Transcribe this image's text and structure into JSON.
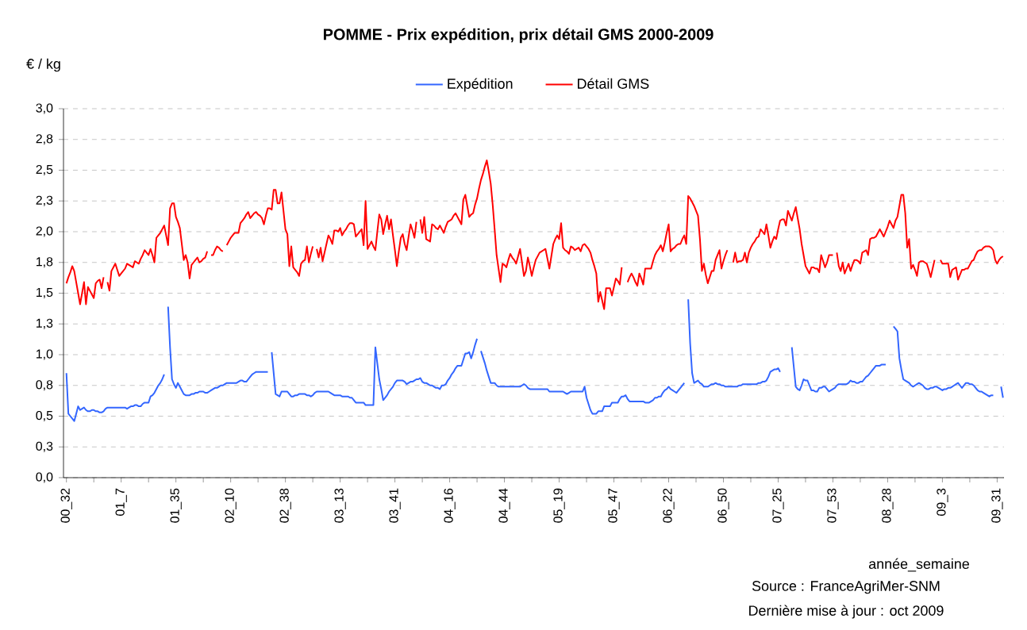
{
  "chart_data": {
    "type": "line",
    "title": "POMME - Prix expédition, prix détail GMS  2000-2009",
    "ylabel": "€ / kg",
    "xlabel": "année_semaine",
    "annotations": [
      "Source : FranceAgriMer-SNM",
      "Dernière mise à jour : oct 2009"
    ],
    "legend": "top",
    "grid": "y",
    "line_style": "solid",
    "ylim": [
      0,
      3
    ],
    "yticks": [
      {
        "value": 0,
        "label": "0,0"
      },
      {
        "value": 0.25,
        "label": "0,3"
      },
      {
        "value": 0.5,
        "label": "0,5"
      },
      {
        "value": 0.75,
        "label": "0,8"
      },
      {
        "value": 1,
        "label": "1,0"
      },
      {
        "value": 1.25,
        "label": "1,3"
      },
      {
        "value": 1.5,
        "label": "1,5"
      },
      {
        "value": 1.75,
        "label": "1,8"
      },
      {
        "value": 2,
        "label": "2,0"
      },
      {
        "value": 2.25,
        "label": "2,3"
      },
      {
        "value": 2.5,
        "label": "2,5"
      },
      {
        "value": 2.75,
        "label": "2,8"
      },
      {
        "value": 3,
        "label": "3,0"
      }
    ],
    "categories": [
      "00_32",
      null,
      null,
      null,
      null,
      null,
      null,
      null,
      null,
      null,
      null,
      null,
      null,
      null,
      null,
      null,
      null,
      null,
      null,
      null,
      null,
      null,
      null,
      null,
      null,
      null,
      null,
      null,
      "01_7",
      null,
      null,
      null,
      null,
      null,
      null,
      null,
      null,
      null,
      null,
      null,
      null,
      null,
      null,
      null,
      null,
      null,
      null,
      null,
      null,
      null,
      null,
      null,
      null,
      null,
      null,
      null,
      "01_35",
      null,
      null,
      null,
      null,
      null,
      null,
      null,
      null,
      null,
      null,
      null,
      null,
      null,
      null,
      null,
      null,
      null,
      null,
      null,
      null,
      null,
      null,
      null,
      null,
      null,
      null,
      null,
      "02_10",
      null,
      null,
      null,
      null,
      null,
      null,
      null,
      null,
      null,
      null,
      null,
      null,
      null,
      null,
      null,
      null,
      null,
      null,
      null,
      null,
      null,
      null,
      null,
      null,
      null,
      null,
      null,
      "02_38",
      null,
      null,
      null,
      null,
      null,
      null,
      null,
      null,
      null,
      null,
      null,
      null,
      null,
      null,
      null,
      null,
      null,
      null,
      null,
      null,
      null,
      null,
      null,
      null,
      null,
      null,
      null,
      "03_13",
      null,
      null,
      null,
      null,
      null,
      null,
      null,
      null,
      null,
      null,
      null,
      null,
      null,
      null,
      null,
      null,
      null,
      null,
      null,
      null,
      null,
      null,
      null,
      null,
      null,
      null,
      null,
      "03_41",
      null,
      null,
      null,
      null,
      null,
      null,
      null,
      null,
      null,
      null,
      null,
      null,
      null,
      null,
      null,
      null,
      null,
      null,
      null,
      null,
      null,
      null,
      null,
      null,
      null,
      null,
      null,
      "04_16",
      null,
      null,
      null,
      null,
      null,
      null,
      null,
      null,
      null,
      null,
      null,
      null,
      null,
      null,
      null,
      null,
      null,
      null,
      null,
      null,
      null,
      null,
      null,
      null,
      null,
      null,
      null,
      "04_44",
      null,
      null,
      null,
      null,
      null,
      null,
      null,
      null,
      null,
      null,
      null,
      null,
      null,
      null,
      null,
      null,
      null,
      null,
      null,
      null,
      null,
      null,
      null,
      null,
      null,
      null,
      null,
      "05_19",
      null,
      null,
      null,
      null,
      null,
      null,
      null,
      null,
      null,
      null,
      null,
      null,
      null,
      null,
      null,
      null,
      null,
      null,
      null,
      null,
      null,
      null,
      null,
      null,
      null,
      null,
      null,
      "05_47",
      null,
      null,
      null,
      null,
      null,
      null,
      null,
      null,
      null,
      null,
      null,
      null,
      null,
      null,
      null,
      null,
      null,
      null,
      null,
      null,
      null,
      null,
      null,
      null,
      null,
      null,
      null,
      "06_22",
      null,
      null,
      null,
      null,
      null,
      null,
      null,
      null,
      null,
      null,
      null,
      null,
      null,
      null,
      null,
      null,
      null,
      null,
      null,
      null,
      null,
      null,
      null,
      null,
      null,
      null,
      null,
      "06_50",
      null,
      null,
      null,
      null,
      null,
      null,
      null,
      null,
      null,
      null,
      null,
      null,
      null,
      null,
      null,
      null,
      null,
      null,
      null,
      null,
      null,
      null,
      null,
      null,
      null,
      null,
      null,
      "07_25",
      null,
      null,
      null,
      null,
      null,
      null,
      null,
      null,
      null,
      null,
      null,
      null,
      null,
      null,
      null,
      null,
      null,
      null,
      null,
      null,
      null,
      null,
      null,
      null,
      null,
      null,
      null,
      "07_53",
      null,
      null,
      null,
      null,
      null,
      null,
      null,
      null,
      null,
      null,
      null,
      null,
      null,
      null,
      null,
      null,
      null,
      null,
      null,
      null,
      null,
      null,
      null,
      null,
      null,
      null,
      null,
      "08_28",
      null,
      null,
      null,
      null,
      null,
      null,
      null,
      null,
      null,
      null,
      null,
      null,
      null,
      null,
      null,
      null,
      null,
      null,
      null,
      null,
      null,
      null,
      null,
      null,
      null,
      null,
      null,
      "09_3",
      null,
      null,
      null,
      null,
      null,
      null,
      null,
      null,
      null,
      null,
      null,
      null,
      null,
      null,
      null,
      null,
      null,
      null,
      null,
      null,
      null,
      null,
      null,
      null,
      null,
      null,
      null,
      "09_31",
      null,
      null,
      null
    ],
    "series": [
      {
        "name": "Expédition",
        "color": "#3366ff",
        "values": [
          0.85,
          0.52,
          0.5,
          0.48,
          0.46,
          0.52,
          0.58,
          0.55,
          0.56,
          0.57,
          0.55,
          0.54,
          0.54,
          0.55,
          0.55,
          0.54,
          0.54,
          0.53,
          0.53,
          0.54,
          0.56,
          0.57,
          0.57,
          0.57,
          0.57,
          0.57,
          0.57,
          0.57,
          0.57,
          0.57,
          0.57,
          0.56,
          0.57,
          0.58,
          0.58,
          0.59,
          0.59,
          0.58,
          0.58,
          0.6,
          0.61,
          0.61,
          0.61,
          0.66,
          0.67,
          0.69,
          0.72,
          0.75,
          0.77,
          0.8,
          0.84,
          null,
          1.39,
          1.06,
          0.8,
          0.76,
          0.73,
          0.77,
          0.74,
          0.71,
          0.68,
          0.67,
          0.67,
          0.67,
          0.68,
          0.68,
          0.69,
          0.69,
          0.7,
          0.7,
          0.7,
          0.69,
          0.69,
          0.7,
          0.71,
          0.72,
          0.73,
          0.73,
          0.74,
          0.75,
          0.75,
          0.76,
          0.77,
          0.77,
          0.77,
          0.77,
          0.77,
          0.77,
          0.78,
          0.79,
          0.79,
          0.78,
          0.78,
          0.8,
          0.82,
          0.84,
          0.85,
          0.86,
          0.86,
          0.86,
          0.86,
          0.86,
          0.86,
          0.86,
          null,
          1.02,
          0.85,
          0.68,
          0.67,
          0.66,
          0.7,
          0.7,
          0.7,
          0.7,
          0.68,
          0.66,
          0.66,
          0.67,
          0.67,
          0.68,
          0.68,
          0.68,
          0.68,
          0.67,
          0.67,
          0.66,
          0.67,
          0.69,
          0.7,
          0.7,
          0.7,
          0.7,
          0.7,
          0.7,
          0.7,
          0.69,
          0.68,
          0.67,
          0.67,
          0.67,
          0.67,
          0.66,
          0.66,
          0.66,
          0.66,
          0.65,
          0.65,
          0.63,
          0.61,
          0.61,
          0.61,
          0.61,
          0.61,
          0.59,
          0.59,
          0.59,
          0.59,
          0.59,
          1.06,
          0.93,
          0.8,
          0.72,
          0.63,
          0.65,
          0.67,
          0.7,
          0.72,
          0.74,
          0.77,
          0.79,
          0.79,
          0.79,
          0.79,
          0.78,
          0.76,
          0.77,
          0.78,
          0.78,
          0.79,
          0.8,
          0.8,
          0.81,
          0.78,
          0.77,
          0.77,
          0.76,
          0.75,
          0.75,
          0.74,
          0.73,
          0.73,
          0.72,
          0.75,
          0.75,
          0.76,
          0.79,
          0.81,
          0.84,
          0.86,
          0.89,
          0.91,
          0.91,
          0.91,
          0.96,
          1.01,
          1.01,
          1.02,
          0.97,
          1.02,
          1.08,
          1.13,
          null,
          1.03,
          0.98,
          0.93,
          0.87,
          0.82,
          0.77,
          0.77,
          0.77,
          0.75,
          0.74,
          0.74,
          0.74,
          0.74,
          0.74,
          0.74,
          0.74,
          0.74,
          0.74,
          0.74,
          0.74,
          0.74,
          0.75,
          0.76,
          0.75,
          0.73,
          0.72,
          0.72,
          0.72,
          0.72,
          0.72,
          0.72,
          0.72,
          0.72,
          0.72,
          0.72,
          0.7,
          0.7,
          0.7,
          0.7,
          0.7,
          0.7,
          0.7,
          0.7,
          0.69,
          0.68,
          0.69,
          0.7,
          0.7,
          0.7,
          0.7,
          0.7,
          0.7,
          0.7,
          0.74,
          0.65,
          0.6,
          0.55,
          0.52,
          0.52,
          0.52,
          0.54,
          0.54,
          0.54,
          0.58,
          0.58,
          0.58,
          0.58,
          0.61,
          0.61,
          0.61,
          0.61,
          0.64,
          0.66,
          0.66,
          0.67,
          0.64,
          0.62,
          0.62,
          0.62,
          0.62,
          0.62,
          0.62,
          0.62,
          0.62,
          0.61,
          0.61,
          0.61,
          0.62,
          0.63,
          0.65,
          0.65,
          0.66,
          0.66,
          0.69,
          0.71,
          0.72,
          0.74,
          0.72,
          0.71,
          0.7,
          0.69,
          0.71,
          0.73,
          0.75,
          0.77,
          null,
          1.45,
          1.09,
          0.85,
          0.77,
          0.78,
          0.79,
          0.77,
          0.76,
          0.74,
          0.74,
          0.74,
          0.75,
          0.76,
          0.76,
          0.77,
          0.76,
          0.76,
          0.75,
          0.75,
          0.74,
          0.74,
          0.74,
          0.74,
          0.74,
          0.74,
          0.74,
          0.75,
          0.75,
          0.76,
          0.76,
          0.76,
          0.76,
          0.76,
          0.76,
          0.76,
          0.76,
          0.77,
          0.77,
          0.78,
          0.78,
          0.79,
          0.82,
          0.86,
          0.87,
          0.88,
          0.88,
          0.89,
          0.86,
          null,
          null,
          null,
          null,
          null,
          1.06,
          0.9,
          0.74,
          0.72,
          0.71,
          0.75,
          0.8,
          0.79,
          0.79,
          0.75,
          0.71,
          0.71,
          0.7,
          0.7,
          0.73,
          0.73,
          0.74,
          0.74,
          0.72,
          0.7,
          0.71,
          0.72,
          0.73,
          0.75,
          0.76,
          0.76,
          0.76,
          0.76,
          0.76,
          0.77,
          0.79,
          0.78,
          0.78,
          0.77,
          0.77,
          0.78,
          0.78,
          0.8,
          0.82,
          0.83,
          0.85,
          0.87,
          0.89,
          0.91,
          0.91,
          0.91,
          0.92,
          0.92,
          0.92,
          null,
          null,
          null,
          1.23,
          1.21,
          1.19,
          0.97,
          0.88,
          0.8,
          0.79,
          0.78,
          0.77,
          0.75,
          0.74,
          0.75,
          0.76,
          0.77,
          0.76,
          0.75,
          0.73,
          0.72,
          0.72,
          0.73,
          0.73,
          0.74,
          0.74,
          0.73,
          0.72,
          0.71,
          0.72,
          0.72,
          0.73,
          0.73,
          0.74,
          0.75,
          0.76,
          0.77,
          0.75,
          0.73,
          0.75,
          0.77,
          0.77,
          0.76,
          0.76,
          0.75,
          0.73,
          0.71,
          0.7,
          0.7,
          0.69,
          0.68,
          0.67,
          0.66,
          0.67,
          0.67,
          null,
          null,
          null,
          0.74,
          0.65
        ]
      },
      {
        "name": "Détail GMS",
        "color": "#ff0000",
        "values": [
          1.58,
          1.63,
          1.67,
          1.72,
          1.68,
          1.59,
          1.5,
          1.41,
          1.5,
          1.59,
          1.41,
          1.55,
          1.52,
          1.49,
          1.46,
          1.58,
          1.6,
          1.61,
          1.54,
          1.63,
          null,
          1.59,
          1.52,
          1.68,
          1.71,
          1.74,
          1.69,
          1.64,
          1.66,
          1.68,
          1.7,
          1.74,
          1.73,
          1.72,
          1.71,
          1.76,
          1.75,
          1.74,
          1.78,
          1.81,
          1.85,
          1.83,
          1.81,
          1.86,
          1.81,
          1.75,
          1.95,
          1.97,
          1.99,
          2.02,
          2.05,
          1.97,
          1.89,
          2.19,
          2.23,
          2.23,
          2.12,
          2.08,
          2.03,
          1.9,
          1.77,
          1.81,
          1.75,
          1.62,
          1.73,
          1.75,
          1.77,
          1.79,
          1.75,
          1.76,
          1.78,
          1.79,
          1.84,
          null,
          1.81,
          1.81,
          1.85,
          1.88,
          1.87,
          1.85,
          1.84,
          null,
          1.89,
          1.92,
          1.95,
          1.97,
          1.99,
          1.99,
          1.99,
          2.07,
          2.09,
          2.11,
          2.14,
          2.16,
          2.11,
          2.13,
          2.15,
          2.16,
          2.14,
          2.13,
          2.11,
          2.06,
          2.13,
          2.19,
          2.19,
          2.18,
          2.34,
          2.34,
          2.23,
          2.23,
          2.32,
          2.17,
          2.02,
          1.98,
          1.72,
          1.88,
          1.71,
          1.69,
          1.67,
          1.64,
          1.74,
          1.76,
          1.77,
          1.88,
          1.75,
          1.82,
          1.88,
          null,
          1.86,
          1.79,
          1.87,
          1.76,
          1.83,
          1.9,
          1.97,
          1.94,
          1.9,
          2.01,
          2.01,
          2.0,
          2.03,
          1.97,
          2.0,
          2.02,
          2.05,
          2.07,
          2.07,
          2.06,
          1.96,
          1.98,
          2.0,
          2.02,
          1.89,
          2.25,
          1.86,
          1.89,
          1.92,
          1.88,
          1.85,
          2.0,
          2.14,
          2.1,
          1.98,
          2.06,
          2.13,
          2.02,
          2.1,
          1.97,
          1.85,
          1.72,
          1.84,
          1.95,
          1.98,
          1.9,
          1.85,
          1.96,
          2.06,
          2.01,
          1.95,
          2.08,
          null,
          2.1,
          1.99,
          2.12,
          1.94,
          1.93,
          1.92,
          2.06,
          2.05,
          2.03,
          2.02,
          2.05,
          2.02,
          1.99,
          2.04,
          2.08,
          2.09,
          2.1,
          2.13,
          2.15,
          2.12,
          2.09,
          2.06,
          2.26,
          2.3,
          2.21,
          2.12,
          2.14,
          2.15,
          2.22,
          2.27,
          2.35,
          2.42,
          2.47,
          2.53,
          2.58,
          2.49,
          2.39,
          2.22,
          2.02,
          1.81,
          1.7,
          1.59,
          1.74,
          1.73,
          1.71,
          1.77,
          1.82,
          1.79,
          1.77,
          1.74,
          1.8,
          1.86,
          1.75,
          1.64,
          1.68,
          1.79,
          1.72,
          1.64,
          1.71,
          1.77,
          1.8,
          1.83,
          1.84,
          1.85,
          1.86,
          1.78,
          1.7,
          1.8,
          1.9,
          1.94,
          1.97,
          1.94,
          2.07,
          1.87,
          1.85,
          1.84,
          1.82,
          1.88,
          1.87,
          1.85,
          1.86,
          1.87,
          1.84,
          1.89,
          1.9,
          1.88,
          1.86,
          1.83,
          1.77,
          1.72,
          1.66,
          1.43,
          1.51,
          1.44,
          1.37,
          1.54,
          1.54,
          1.54,
          1.48,
          1.55,
          1.62,
          1.6,
          1.57,
          1.71,
          null,
          null,
          1.59,
          1.63,
          1.66,
          1.63,
          1.59,
          1.56,
          1.66,
          1.62,
          1.57,
          1.7,
          1.7,
          1.7,
          1.7,
          1.76,
          1.81,
          1.84,
          1.86,
          1.89,
          1.84,
          1.91,
          1.99,
          2.06,
          1.84,
          1.86,
          1.87,
          1.89,
          1.9,
          1.9,
          1.94,
          1.97,
          1.9,
          2.29,
          2.27,
          2.24,
          2.21,
          2.17,
          2.13,
          1.94,
          1.68,
          1.74,
          1.65,
          1.58,
          1.63,
          1.68,
          1.68,
          1.77,
          1.81,
          1.85,
          1.7,
          1.76,
          1.81,
          1.85,
          null,
          null,
          1.75,
          1.83,
          1.75,
          1.76,
          1.76,
          1.77,
          1.83,
          1.75,
          1.83,
          1.87,
          1.9,
          1.92,
          1.95,
          1.96,
          2.02,
          2.0,
          1.98,
          2.06,
          1.97,
          1.87,
          1.92,
          1.96,
          1.94,
          2.02,
          2.09,
          2.1,
          2.1,
          2.05,
          2.17,
          2.13,
          2.09,
          2.15,
          2.2,
          2.11,
          2.02,
          1.9,
          1.81,
          1.72,
          1.69,
          1.66,
          1.71,
          1.71,
          1.7,
          1.7,
          1.67,
          1.81,
          1.76,
          1.71,
          1.75,
          1.81,
          1.81,
          1.81,
          null,
          1.83,
          1.72,
          1.68,
          1.75,
          1.66,
          1.7,
          1.74,
          1.68,
          1.73,
          1.77,
          1.77,
          1.76,
          1.74,
          1.83,
          1.84,
          1.85,
          1.81,
          1.94,
          1.95,
          1.95,
          1.96,
          1.99,
          2.02,
          1.99,
          1.96,
          2.0,
          2.04,
          2.09,
          2.06,
          2.03,
          2.09,
          2.12,
          2.21,
          2.3,
          2.3,
          2.15,
          1.87,
          1.94,
          1.7,
          1.73,
          1.69,
          1.64,
          1.75,
          1.76,
          1.76,
          1.75,
          1.74,
          1.69,
          1.63,
          1.7,
          1.77,
          null,
          null,
          1.77,
          1.74,
          1.74,
          1.74,
          1.74,
          1.63,
          1.69,
          1.7,
          1.71,
          1.61,
          1.65,
          1.69,
          1.69,
          1.7,
          1.7,
          1.73,
          1.76,
          1.77,
          1.81,
          1.84,
          1.85,
          1.85,
          1.87,
          1.88,
          1.88,
          1.88,
          1.87,
          1.85,
          1.77,
          1.74,
          1.77,
          1.79,
          1.8
        ]
      }
    ]
  }
}
